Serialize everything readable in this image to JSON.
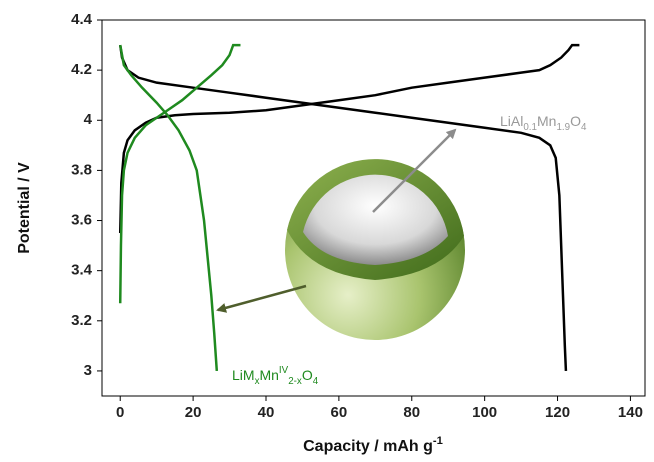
{
  "chart_data": {
    "type": "line",
    "x_label": [
      {
        "text": "Capacity / mAh g"
      },
      {
        "text": "-1",
        "style": "sup"
      }
    ],
    "y_label": "Potential / V",
    "xlim": [
      -5,
      144
    ],
    "ylim": [
      2.9,
      4.4
    ],
    "xticks": [
      0,
      20,
      40,
      60,
      80,
      100,
      120,
      140
    ],
    "yticks": [
      3,
      3.2,
      3.4,
      3.6,
      3.8,
      4,
      4.2,
      4.4
    ],
    "grid": false,
    "series": [
      {
        "color": "#000000",
        "x": [
          0,
          0.3,
          1,
          2,
          4,
          7,
          10,
          15,
          20,
          30,
          40,
          50,
          60,
          70,
          80,
          90,
          100,
          110,
          115,
          118,
          121,
          123,
          124,
          126
        ],
        "values": [
          3.55,
          3.75,
          3.87,
          3.92,
          3.96,
          3.99,
          4.01,
          4.02,
          4.025,
          4.03,
          4.04,
          4.06,
          4.08,
          4.1,
          4.13,
          4.15,
          4.17,
          4.19,
          4.2,
          4.22,
          4.25,
          4.28,
          4.3,
          4.3
        ]
      },
      {
        "color": "#000000",
        "x": [
          0,
          0.5,
          2,
          5,
          10,
          20,
          30,
          40,
          50,
          60,
          70,
          80,
          90,
          100,
          110,
          115,
          118,
          119.5,
          120.5,
          121,
          121.5,
          122,
          122.3
        ],
        "values": [
          4.3,
          4.25,
          4.2,
          4.17,
          4.15,
          4.13,
          4.11,
          4.09,
          4.07,
          4.05,
          4.03,
          4.01,
          3.99,
          3.97,
          3.95,
          3.93,
          3.9,
          3.85,
          3.7,
          3.5,
          3.3,
          3.1,
          3.0
        ]
      },
      {
        "color": "#1f8a1f",
        "x": [
          0,
          0.2,
          0.5,
          1,
          2,
          4,
          7,
          10,
          13,
          17,
          21,
          25,
          28,
          30,
          31,
          33
        ],
        "values": [
          3.27,
          3.5,
          3.7,
          3.8,
          3.87,
          3.93,
          3.98,
          4.01,
          4.04,
          4.08,
          4.13,
          4.18,
          4.22,
          4.26,
          4.3,
          4.3
        ]
      },
      {
        "color": "#1f8a1f",
        "x": [
          0,
          1,
          3,
          6,
          10,
          13,
          16,
          19,
          21,
          22,
          23,
          24,
          25,
          25.8,
          26.5
        ],
        "values": [
          4.3,
          4.22,
          4.18,
          4.13,
          4.07,
          4.02,
          3.96,
          3.88,
          3.8,
          3.7,
          3.6,
          3.45,
          3.3,
          3.15,
          3.0
        ]
      }
    ],
    "annotations": [
      {
        "color": "#999999",
        "parts": [
          {
            "text": "LiAl"
          },
          {
            "text": "0.1",
            "style": "sub"
          },
          {
            "text": "Mn"
          },
          {
            "text": "1.9",
            "style": "sub"
          },
          {
            "text": "O"
          },
          {
            "text": "4",
            "style": "sub"
          }
        ]
      },
      {
        "color": "#1f8a1f",
        "parts": [
          {
            "text": "LiM"
          },
          {
            "text": "x",
            "style": "sub"
          },
          {
            "text": "Mn"
          },
          {
            "text": "IV",
            "style": "sup"
          },
          {
            "text": "2-x",
            "style": "sub"
          },
          {
            "text": "O"
          },
          {
            "text": "4",
            "style": "sub"
          }
        ]
      }
    ]
  }
}
